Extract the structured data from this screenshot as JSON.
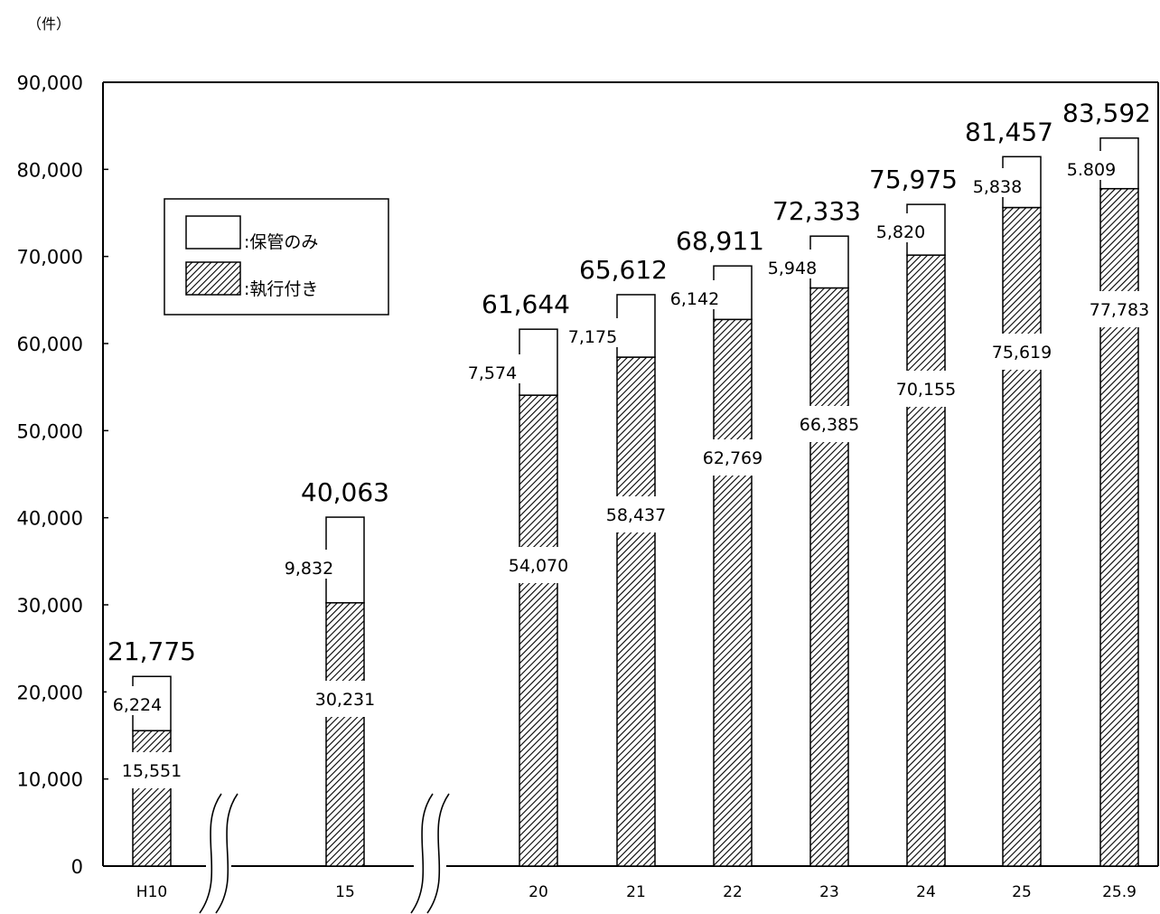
{
  "chart_data": {
    "type": "bar",
    "stacked": true,
    "unit_label": "（件）",
    "categories": [
      "H10",
      "15",
      "20",
      "21",
      "22",
      "23",
      "24",
      "25",
      "25.9"
    ],
    "series": [
      {
        "name": "執行付き",
        "pattern": "hatched",
        "values": [
          15551,
          30231,
          54070,
          58437,
          62769,
          66385,
          70155,
          75619,
          77783
        ]
      },
      {
        "name": "保管のみ",
        "pattern": "white",
        "values": [
          6224,
          9832,
          7574,
          7175,
          6142,
          5948,
          5820,
          5838,
          5809
        ]
      }
    ],
    "totals": [
      21775,
      40063,
      61644,
      65612,
      68911,
      72333,
      75975,
      81457,
      83592
    ],
    "segment_labels": {
      "lower": [
        "15,551",
        "30,231",
        "54,070",
        "58,437",
        "62,769",
        "66,385",
        "70,155",
        "75,619",
        "77,783"
      ],
      "upper": [
        "6,224",
        "9,832",
        "7,574",
        "7,175",
        "6,142",
        "5,948",
        "5,820",
        "5,838",
        "5.809"
      ]
    },
    "total_labels": [
      "21,775",
      "40,063",
      "61,644",
      "65,612",
      "68,911",
      "72,333",
      "75,975",
      "81,457",
      "83,592"
    ],
    "yticks": [
      "0",
      "10,000",
      "20,000",
      "30,000",
      "40,000",
      "50,000",
      "60,000",
      "70,000",
      "80,000",
      "90,000"
    ],
    "ylim": [
      0,
      90000
    ],
    "axis_breaks_after": [
      "H10",
      "15"
    ],
    "legend": {
      "position": "upper-left",
      "items": [
        {
          "label": ":保管のみ",
          "pattern": "white"
        },
        {
          "label": ":執行付き",
          "pattern": "hatched"
        }
      ]
    },
    "colors": {
      "line": "#000000",
      "background": "#ffffff",
      "hatch": "#000000"
    }
  }
}
